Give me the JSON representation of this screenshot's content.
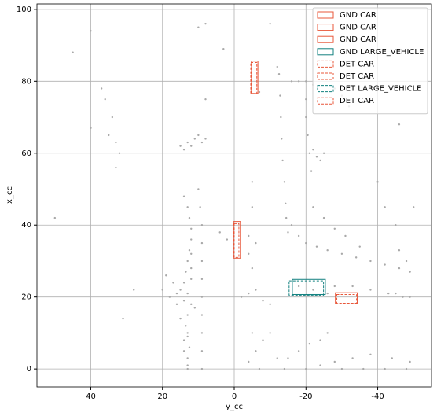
{
  "chart_data": {
    "type": "scatter",
    "xlabel": "y_cc",
    "ylabel": "x_cc",
    "xlim": [
      55,
      -55
    ],
    "ylim": [
      -5,
      101.5
    ],
    "xticks": [
      40,
      20,
      0,
      -20,
      -40
    ],
    "yticks": [
      0,
      20,
      40,
      60,
      80,
      100
    ],
    "grid": true,
    "legend": "upper right",
    "color": "#a9a9a9",
    "x": [
      13,
      13,
      12.5,
      13,
      13.5,
      13,
      12,
      13,
      14,
      13.5,
      13,
      12.5,
      12,
      12,
      12.5,
      13,
      14,
      15,
      14,
      12,
      11,
      13,
      14,
      12,
      15,
      14,
      13,
      12,
      9,
      9,
      9,
      9,
      9,
      9,
      9,
      9,
      9,
      9.5,
      10,
      15,
      13,
      11,
      9,
      14,
      12,
      10,
      8,
      20,
      18,
      16,
      17,
      19,
      16,
      32,
      33,
      35,
      36,
      37,
      33,
      34,
      40,
      45,
      50,
      28,
      31,
      40,
      -12.5,
      -12.8,
      -13,
      -13.2,
      -13.5,
      -14,
      -14.3,
      -14.5,
      -15,
      -16,
      -18,
      -20,
      -22,
      -20,
      -20,
      -20.5,
      -21,
      -21.5,
      -16,
      -18,
      -20,
      -23,
      -26,
      -30,
      -34,
      -38,
      -42,
      -46,
      -49,
      -22,
      -25,
      -28,
      -31,
      -35,
      -22,
      -23,
      -24,
      -25,
      -46,
      -48,
      -45,
      -42,
      -40,
      -50,
      -46,
      -28,
      -30,
      -32,
      -45,
      -47,
      -49,
      -43,
      -38,
      -14,
      -15,
      -18,
      -21,
      -24,
      -26,
      -20,
      -24,
      -28,
      -33,
      -38,
      -44,
      -49,
      -30,
      -36,
      -42,
      -48,
      -5,
      -6,
      -8,
      -4,
      -7,
      -10,
      -12,
      -10,
      -8,
      -2,
      -4,
      -6,
      -5,
      -4,
      -6,
      -4,
      -5,
      -18,
      -22,
      -26,
      -28,
      -33,
      -10,
      10,
      8,
      -12,
      -7,
      3,
      8,
      -5,
      2,
      4
    ],
    "y": [
      0,
      3,
      6,
      9,
      12,
      15,
      18,
      21,
      24,
      27,
      30,
      33,
      36,
      39,
      42,
      45,
      48,
      22,
      19,
      25,
      17,
      10,
      5,
      28,
      14,
      8,
      1,
      32,
      0,
      5,
      10,
      15,
      20,
      25,
      30,
      35,
      40,
      45,
      50,
      62,
      63,
      64,
      63,
      61,
      62,
      65,
      64,
      22,
      20,
      21,
      24,
      26,
      18,
      60,
      63,
      65,
      75,
      78,
      56,
      70,
      94,
      88,
      42,
      22,
      14,
      67,
      82,
      76,
      70,
      64,
      58,
      52,
      46,
      42,
      38,
      80,
      80,
      80,
      79,
      75,
      70,
      65,
      60,
      55,
      40,
      37,
      35,
      34,
      33,
      32,
      31,
      30,
      29,
      28,
      27,
      45,
      42,
      39,
      37,
      34,
      61,
      59,
      58,
      60,
      33,
      30,
      40,
      45,
      52,
      45,
      68,
      78,
      76,
      73,
      21,
      20,
      20,
      21,
      22,
      0,
      3,
      5,
      7,
      8,
      10,
      0,
      1,
      2,
      3,
      4,
      3,
      2,
      0,
      0,
      0,
      0,
      10,
      5,
      8,
      2,
      0,
      10,
      3,
      18,
      19,
      20,
      21,
      22,
      28,
      32,
      35,
      37,
      45,
      23,
      22,
      21,
      23,
      23,
      96,
      95,
      96,
      84,
      77,
      89,
      75,
      52,
      36,
      38
    ],
    "boxes": [
      {
        "name": "GND CAR",
        "color": "#e8573a",
        "linestyle": "solid",
        "x": [
          -4.8,
          -6.6
        ],
        "y": [
          76.6,
          85.6
        ]
      },
      {
        "name": "GND CAR",
        "color": "#e8573a",
        "linestyle": "solid",
        "x": [
          0.2,
          -1.7
        ],
        "y": [
          30.8,
          41
        ]
      },
      {
        "name": "GND CAR",
        "color": "#e8573a",
        "linestyle": "solid",
        "x": [
          -28.2,
          -34.3
        ],
        "y": [
          18.1,
          21.2
        ]
      },
      {
        "name": "GND LARGE_VEHICLE",
        "color": "#12807f",
        "linestyle": "solid",
        "x": [
          -16.2,
          -25.4
        ],
        "y": [
          20.7,
          24.9
        ]
      },
      {
        "name": "DET CAR",
        "color": "#e8573a",
        "linestyle": "dashed",
        "x": [
          -4.6,
          -6.3
        ],
        "y": [
          76.6,
          85.2
        ]
      },
      {
        "name": "DET CAR",
        "color": "#e8573a",
        "linestyle": "dashed",
        "x": [
          0,
          -1.3
        ],
        "y": [
          31,
          40.4
        ]
      },
      {
        "name": "DET LARGE_VEHICLE",
        "color": "#12807f",
        "linestyle": "dashed",
        "x": [
          -15.3,
          -24.9
        ],
        "y": [
          20.5,
          24.5
        ]
      },
      {
        "name": "DET CAR",
        "color": "#e8573a",
        "linestyle": "dashed",
        "x": [
          -28.6,
          -34.1
        ],
        "y": [
          18.3,
          20.7
        ]
      }
    ]
  }
}
